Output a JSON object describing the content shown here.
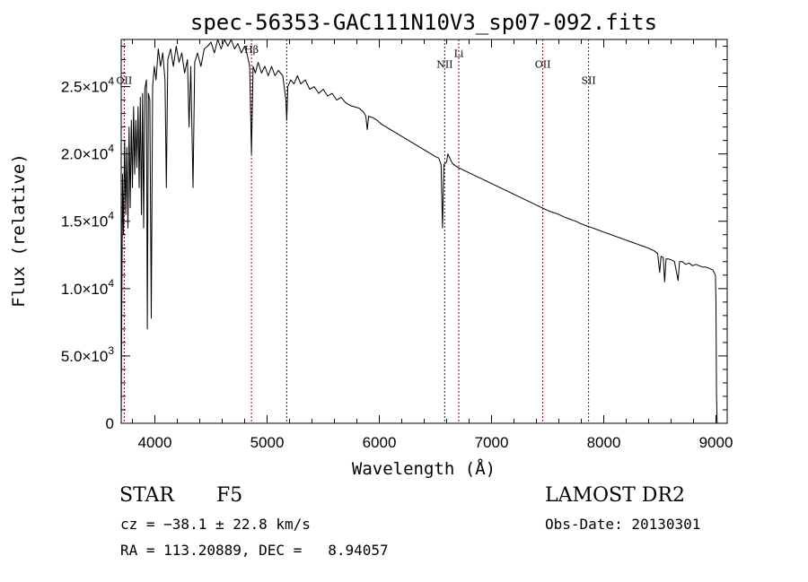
{
  "chart_data": {
    "type": "line",
    "title": "spec-56353-GAC111N10V3_sp07-092.fits",
    "xlabel": "Wavelength (Å)",
    "ylabel": "Flux (relative)",
    "xlim": [
      3700,
      9100
    ],
    "ylim": [
      0,
      28500
    ],
    "xticks": [
      {
        "value": 4000,
        "label": "4000"
      },
      {
        "value": 5000,
        "label": "5000"
      },
      {
        "value": 6000,
        "label": "6000"
      },
      {
        "value": 7000,
        "label": "7000"
      },
      {
        "value": 8000,
        "label": "8000"
      },
      {
        "value": 9000,
        "label": "9000"
      }
    ],
    "yticks": [
      {
        "value": 0,
        "mantissa": "0",
        "exp": ""
      },
      {
        "value": 5000,
        "mantissa": "5.0×10",
        "exp": "3"
      },
      {
        "value": 10000,
        "mantissa": "1.0×10",
        "exp": "4"
      },
      {
        "value": 15000,
        "mantissa": "1.5×10",
        "exp": "4"
      },
      {
        "value": 20000,
        "mantissa": "2.0×10",
        "exp": "4"
      },
      {
        "value": 25000,
        "mantissa": "2.5×10",
        "exp": "4"
      }
    ],
    "grid": false,
    "line_color": "#000000",
    "marker_color": "#8b0000",
    "lines": [
      {
        "wavelength": 3727,
        "label": "OII",
        "label_y": 25200
      },
      {
        "wavelength": 4861,
        "label": "Hβ",
        "label_y": 27500
      },
      {
        "wavelength": 5175,
        "label": "",
        "label_y": 0
      },
      {
        "wavelength": 6583,
        "label": "NII",
        "label_y": 26400
      },
      {
        "wavelength": 6708,
        "label": "Li",
        "label_y": 27200
      },
      {
        "wavelength": 7457,
        "label": "OII",
        "label_y": 26400
      },
      {
        "wavelength": 7865,
        "label": "SII",
        "label_y": 25200
      }
    ],
    "spectrum": [
      [
        3700,
        0
      ],
      [
        3705,
        8000
      ],
      [
        3712,
        18500
      ],
      [
        3720,
        14000
      ],
      [
        3730,
        21000
      ],
      [
        3740,
        15500
      ],
      [
        3750,
        20500
      ],
      [
        3760,
        14500
      ],
      [
        3770,
        22000
      ],
      [
        3780,
        16000
      ],
      [
        3790,
        22500
      ],
      [
        3800,
        17500
      ],
      [
        3810,
        23500
      ],
      [
        3820,
        18500
      ],
      [
        3830,
        22500
      ],
      [
        3840,
        19000
      ],
      [
        3850,
        23500
      ],
      [
        3860,
        17500
      ],
      [
        3870,
        24200
      ],
      [
        3880,
        15500
      ],
      [
        3890,
        24500
      ],
      [
        3900,
        14500
      ],
      [
        3910,
        24800
      ],
      [
        3925,
        25500
      ],
      [
        3933,
        7000
      ],
      [
        3942,
        24500
      ],
      [
        3955,
        24000
      ],
      [
        3968,
        7800
      ],
      [
        3980,
        25000
      ],
      [
        3995,
        26500
      ],
      [
        4010,
        25500
      ],
      [
        4030,
        27800
      ],
      [
        4050,
        26500
      ],
      [
        4070,
        27500
      ],
      [
        4090,
        25500
      ],
      [
        4102,
        17500
      ],
      [
        4115,
        27000
      ],
      [
        4140,
        27800
      ],
      [
        4165,
        26500
      ],
      [
        4190,
        28000
      ],
      [
        4215,
        26800
      ],
      [
        4240,
        27500
      ],
      [
        4265,
        26000
      ],
      [
        4290,
        27000
      ],
      [
        4305,
        22000
      ],
      [
        4320,
        26500
      ],
      [
        4340,
        17500
      ],
      [
        4355,
        26800
      ],
      [
        4380,
        27500
      ],
      [
        4410,
        26500
      ],
      [
        4440,
        27800
      ],
      [
        4470,
        28000
      ],
      [
        4500,
        28300
      ],
      [
        4530,
        27500
      ],
      [
        4560,
        28500
      ],
      [
        4590,
        27800
      ],
      [
        4620,
        28500
      ],
      [
        4650,
        28000
      ],
      [
        4680,
        28500
      ],
      [
        4710,
        27800
      ],
      [
        4740,
        28200
      ],
      [
        4770,
        27500
      ],
      [
        4800,
        28000
      ],
      [
        4825,
        27300
      ],
      [
        4845,
        26500
      ],
      [
        4861,
        20000
      ],
      [
        4875,
        26500
      ],
      [
        4895,
        26000
      ],
      [
        4920,
        26800
      ],
      [
        4950,
        26000
      ],
      [
        4980,
        26500
      ],
      [
        5010,
        25800
      ],
      [
        5040,
        26500
      ],
      [
        5070,
        25800
      ],
      [
        5100,
        26200
      ],
      [
        5140,
        25800
      ],
      [
        5167,
        24000
      ],
      [
        5175,
        22500
      ],
      [
        5185,
        25000
      ],
      [
        5210,
        25500
      ],
      [
        5240,
        25200
      ],
      [
        5270,
        25800
      ],
      [
        5300,
        25200
      ],
      [
        5340,
        25500
      ],
      [
        5380,
        24800
      ],
      [
        5420,
        25000
      ],
      [
        5460,
        24500
      ],
      [
        5500,
        24800
      ],
      [
        5540,
        24300
      ],
      [
        5580,
        24500
      ],
      [
        5620,
        24000
      ],
      [
        5660,
        24200
      ],
      [
        5700,
        23800
      ],
      [
        5740,
        23600
      ],
      [
        5780,
        23500
      ],
      [
        5820,
        23400
      ],
      [
        5860,
        23100
      ],
      [
        5880,
        22800
      ],
      [
        5893,
        21800
      ],
      [
        5905,
        22800
      ],
      [
        5940,
        22700
      ],
      [
        5980,
        22500
      ],
      [
        6020,
        22200
      ],
      [
        6060,
        22000
      ],
      [
        6100,
        21800
      ],
      [
        6140,
        21600
      ],
      [
        6180,
        21400
      ],
      [
        6220,
        21200
      ],
      [
        6260,
        21000
      ],
      [
        6300,
        20800
      ],
      [
        6340,
        20600
      ],
      [
        6380,
        20400
      ],
      [
        6420,
        20200
      ],
      [
        6460,
        20000
      ],
      [
        6500,
        19800
      ],
      [
        6530,
        19700
      ],
      [
        6550,
        19200
      ],
      [
        6563,
        14500
      ],
      [
        6575,
        19200
      ],
      [
        6600,
        19400
      ],
      [
        6610,
        20000
      ],
      [
        6650,
        19300
      ],
      [
        6700,
        19000
      ],
      [
        6750,
        18800
      ],
      [
        6800,
        18600
      ],
      [
        6850,
        18400
      ],
      [
        6900,
        18200
      ],
      [
        6950,
        18000
      ],
      [
        7000,
        17800
      ],
      [
        7050,
        17600
      ],
      [
        7100,
        17400
      ],
      [
        7150,
        17200
      ],
      [
        7200,
        17000
      ],
      [
        7250,
        16800
      ],
      [
        7300,
        16600
      ],
      [
        7350,
        16400
      ],
      [
        7400,
        16200
      ],
      [
        7450,
        16000
      ],
      [
        7500,
        15800
      ],
      [
        7550,
        15650
      ],
      [
        7600,
        15500
      ],
      [
        7650,
        15300
      ],
      [
        7700,
        15150
      ],
      [
        7750,
        15000
      ],
      [
        7800,
        14800
      ],
      [
        7850,
        14650
      ],
      [
        7900,
        14500
      ],
      [
        7950,
        14350
      ],
      [
        8000,
        14200
      ],
      [
        8050,
        14050
      ],
      [
        8100,
        13900
      ],
      [
        8150,
        13750
      ],
      [
        8200,
        13600
      ],
      [
        8250,
        13450
      ],
      [
        8300,
        13300
      ],
      [
        8350,
        13150
      ],
      [
        8400,
        13000
      ],
      [
        8450,
        12800
      ],
      [
        8480,
        12600
      ],
      [
        8498,
        11200
      ],
      [
        8510,
        12400
      ],
      [
        8530,
        12300
      ],
      [
        8542,
        10500
      ],
      [
        8555,
        12200
      ],
      [
        8580,
        12200
      ],
      [
        8610,
        12100
      ],
      [
        8630,
        12000
      ],
      [
        8662,
        10600
      ],
      [
        8675,
        12000
      ],
      [
        8700,
        12000
      ],
      [
        8730,
        11800
      ],
      [
        8760,
        11900
      ],
      [
        8790,
        11700
      ],
      [
        8820,
        11800
      ],
      [
        8850,
        11700
      ],
      [
        8880,
        11600
      ],
      [
        8910,
        11600
      ],
      [
        8940,
        11500
      ],
      [
        8970,
        11400
      ],
      [
        8995,
        11000
      ],
      [
        9000,
        9000
      ],
      [
        9005,
        2000
      ],
      [
        9010,
        0
      ]
    ]
  },
  "info": {
    "object_class": "STAR",
    "subclass": "F5",
    "survey": "LAMOST DR2",
    "redshift": "cz = −38.1 ± 22.8 km/s",
    "obs_date": "Obs-Date: 20130301",
    "coords": "RA = 113.20889, DEC =   8.94057"
  }
}
